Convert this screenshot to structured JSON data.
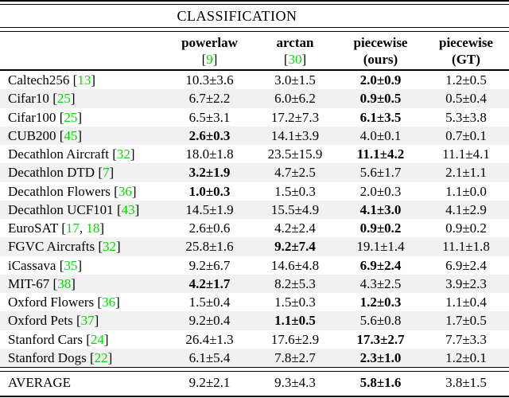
{
  "colors": {
    "citation_green": "#00dd00",
    "stripe_gray": "#f1f1f1",
    "rule_black": "#000000"
  },
  "table": {
    "title": "CLASSIFICATION",
    "columns": [
      {
        "label": "powerlaw",
        "cite": "9"
      },
      {
        "label": "arctan",
        "cite": "30"
      },
      {
        "label": "piecewise",
        "note": "(ours)"
      },
      {
        "label": "piecewise",
        "note": "(GT)"
      }
    ],
    "rows": [
      {
        "name": "Caltech256",
        "cite": "13",
        "values": [
          "10.3±3.6",
          "3.0±1.5",
          "2.0±0.9",
          "1.2±0.5"
        ],
        "bold": 2
      },
      {
        "name": "Cifar10",
        "cite": "25",
        "values": [
          "6.7±2.2",
          "6.0±6.2",
          "0.9±0.5",
          "0.5±0.4"
        ],
        "bold": 2
      },
      {
        "name": "Cifar100",
        "cite": "25",
        "values": [
          "6.5±3.1",
          "17.2±7.3",
          "6.1±3.5",
          "5.3±3.8"
        ],
        "bold": 2
      },
      {
        "name": "CUB200",
        "cite": "45",
        "values": [
          "2.6±0.3",
          "14.1±3.9",
          "4.0±0.1",
          "0.7±0.1"
        ],
        "bold": 0
      },
      {
        "name": "Decathlon Aircraft",
        "cite": "32",
        "values": [
          "18.0±1.8",
          "23.5±15.9",
          "11.1±4.2",
          "11.1±4.1"
        ],
        "bold": 2
      },
      {
        "name": "Decathlon DTD",
        "cite": "7",
        "values": [
          "3.2±1.9",
          "4.7±2.5",
          "5.6±1.7",
          "2.1±1.1"
        ],
        "bold": 0
      },
      {
        "name": "Decathlon Flowers",
        "cite": "36",
        "values": [
          "1.0±0.3",
          "1.5±0.3",
          "2.0±0.3",
          "1.1±0.0"
        ],
        "bold": 0
      },
      {
        "name": "Decathlon UCF101",
        "cite": "43",
        "values": [
          "14.5±1.9",
          "15.5±4.9",
          "4.1±3.0",
          "4.1±2.9"
        ],
        "bold": 2
      },
      {
        "name": "EuroSAT",
        "cite": "17, 18",
        "values": [
          "2.6±0.6",
          "4.2±2.4",
          "0.9±0.2",
          "0.9±0.2"
        ],
        "bold": 2
      },
      {
        "name": "FGVC Aircrafts",
        "cite": "32",
        "values": [
          "25.8±1.6",
          "9.2±7.4",
          "19.1±1.4",
          "11.1±1.8"
        ],
        "bold": 1
      },
      {
        "name": "iCassava",
        "cite": "35",
        "values": [
          "9.2±6.7",
          "14.6±4.8",
          "6.9±2.4",
          "6.9±2.4"
        ],
        "bold": 2
      },
      {
        "name": "MIT-67",
        "cite": "38",
        "values": [
          "4.2±1.7",
          "8.2±5.3",
          "4.3±2.5",
          "3.9±2.3"
        ],
        "bold": 0
      },
      {
        "name": "Oxford Flowers",
        "cite": "36",
        "values": [
          "1.5±0.4",
          "1.5±0.3",
          "1.2±0.3",
          "1.1±0.4"
        ],
        "bold": 2
      },
      {
        "name": "Oxford Pets",
        "cite": "37",
        "values": [
          "9.2±0.4",
          "1.1±0.5",
          "5.6±0.8",
          "1.7±0.5"
        ],
        "bold": 1
      },
      {
        "name": "Stanford Cars",
        "cite": "24",
        "values": [
          "26.4±1.3",
          "17.6±2.9",
          "17.3±2.7",
          "7.7±3.3"
        ],
        "bold": 2
      },
      {
        "name": "Stanford Dogs",
        "cite": "22",
        "values": [
          "6.1±5.4",
          "7.8±2.7",
          "2.3±1.0",
          "1.2±0.1"
        ],
        "bold": 2
      }
    ],
    "average": {
      "name": "AVERAGE",
      "values": [
        "9.2±2.1",
        "9.3±4.3",
        "5.8±1.6",
        "3.8±1.5"
      ],
      "bold": 2
    }
  }
}
